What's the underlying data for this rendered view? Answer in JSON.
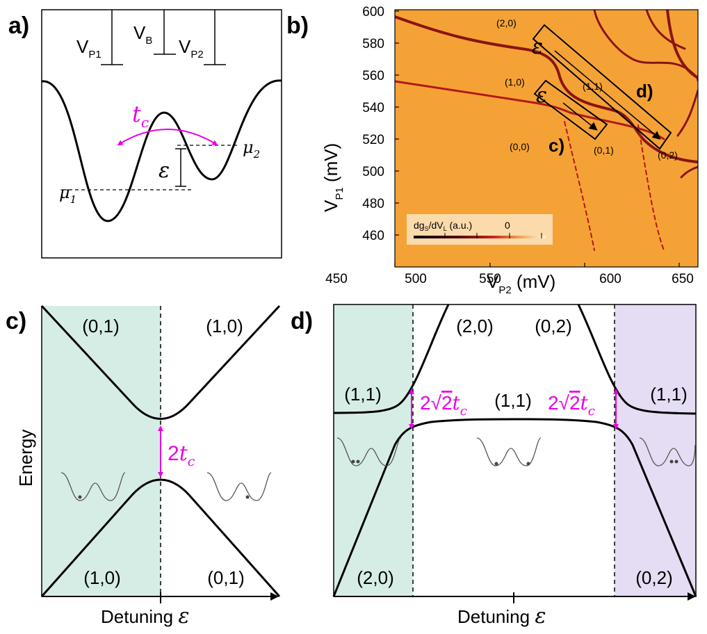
{
  "panels": {
    "a": "a)",
    "b": "b)",
    "c": "c)",
    "d": "d)"
  },
  "panel_a": {
    "gates": {
      "vp1_base": "V",
      "vp1_sub": "P1",
      "vb_base": "V",
      "vb_sub": "B",
      "vp2_base": "V",
      "vp2_sub": "P2"
    },
    "tc_base": "t",
    "tc_sub": "c",
    "mu1_base": "μ",
    "mu1_sub": "1",
    "mu2_base": "μ",
    "mu2_sub": "2",
    "epsilon": "ε"
  },
  "panel_b": {
    "xlabel_base": "V",
    "xlabel_sub": "P2",
    "xlabel_unit": " (mV)",
    "ylabel_base": "V",
    "ylabel_sub": "P1",
    "ylabel_unit": " (mV)",
    "x_ticks": [
      "450",
      "500",
      "550",
      "600",
      "650"
    ],
    "y_ticks": [
      "460",
      "480",
      "500",
      "520",
      "540",
      "560",
      "580",
      "600"
    ],
    "charge_states": [
      "(2,0)",
      "(1,0)",
      "(1,1)",
      "(0,0)",
      "(0,1)",
      "(0,2)"
    ],
    "box_c_label": "c)",
    "box_d_label": "d)",
    "epsilon": "ε",
    "colorbar": {
      "label_pre": "dg",
      "label_s": "S",
      "label_mid": "/dV",
      "label_l": "L",
      "label_post": " (a.u.)",
      "zero": "0"
    },
    "colors": {
      "background": "#f4a236",
      "transition": "#8a1414"
    }
  },
  "panel_c": {
    "ylabel": "Energy",
    "xlabel": "Detuning ",
    "epsilon": "ε",
    "states": {
      "top_left": "(0,1)",
      "top_right": "(1,0)",
      "bottom_left": "(1,0)",
      "bottom_right": "(0,1)"
    },
    "gap_label_num": "2",
    "gap_label_t": "t",
    "gap_label_sub": "c",
    "colors": {
      "shade": "#d6ede5",
      "magenta": "#e800e8"
    }
  },
  "panel_d": {
    "xlabel": "Detuning ",
    "epsilon": "ε",
    "states": {
      "left_mid": "(1,1)",
      "upper_left": "(2,0)",
      "upper_right": "(0,2)",
      "center": "(1,1)",
      "right_mid": "(1,1)",
      "bottom_left": "(2,0)",
      "bottom_right": "(0,2)"
    },
    "gap_label_num": "2",
    "gap_label_sqrt": "√",
    "gap_label_two": "2",
    "gap_label_t": "t",
    "gap_label_sub": "c",
    "colors": {
      "shade_left": "#d6ede5",
      "shade_right": "#e5ddf4",
      "magenta": "#e800e8"
    }
  }
}
